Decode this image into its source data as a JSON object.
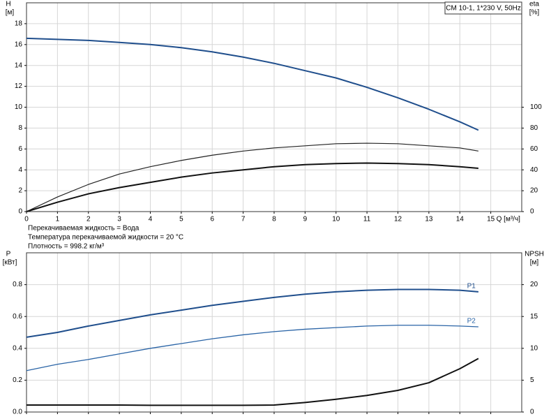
{
  "chart_data": [
    {
      "type": "line",
      "title": "CM 10-1, 1*230 V, 50Hz",
      "ylabel": "H",
      "yunit": "[м]",
      "y2label": "eta",
      "y2unit": "[%]",
      "xlabel": "Q [м³/ч]",
      "notes": [
        "Перекачиваемая жидкость = Вода",
        "Температура перекачиваемой жидкости = 20 °C",
        "Плотность = 998.2 кг/м³"
      ],
      "x": [
        0,
        1,
        2,
        3,
        4,
        5,
        6,
        7,
        8,
        9,
        10,
        11,
        12,
        13,
        14,
        14.6
      ],
      "xlim": [
        0,
        16
      ],
      "xticks": [
        0,
        1,
        2,
        3,
        4,
        5,
        6,
        7,
        8,
        9,
        10,
        11,
        12,
        13,
        14,
        15
      ],
      "xtick_labels": true,
      "ylim": [
        0,
        20
      ],
      "yticks": [
        0,
        2,
        4,
        6,
        8,
        10,
        12,
        14,
        16,
        18
      ],
      "y2lim": [
        0,
        200
      ],
      "y2ticks": [
        0,
        20,
        40,
        60,
        80,
        100
      ],
      "grid": true,
      "series": [
        {
          "color": "#1f4e8c",
          "width": 2,
          "values": [
            16.6,
            16.5,
            16.4,
            16.2,
            16.0,
            15.7,
            15.3,
            14.8,
            14.2,
            13.5,
            12.8,
            11.9,
            10.9,
            9.8,
            8.6,
            7.8
          ]
        },
        {
          "color": "#222222",
          "width": 1.2,
          "axis": "y2",
          "values": [
            0,
            14,
            26,
            36,
            43,
            49,
            54,
            58,
            61,
            63,
            65,
            65.5,
            65,
            63,
            61,
            58
          ]
        },
        {
          "color": "#111111",
          "width": 2,
          "axis": "y2",
          "values": [
            0,
            9,
            17,
            23,
            28,
            33,
            37,
            40,
            43,
            45,
            46,
            46.5,
            46,
            45,
            43,
            41.5
          ]
        }
      ]
    },
    {
      "type": "line",
      "ylabel": "P",
      "yunit": "[кВт]",
      "y2label": "NPSH",
      "y2unit": "[м]",
      "x": [
        0,
        1,
        2,
        3,
        4,
        5,
        6,
        7,
        8,
        9,
        10,
        11,
        12,
        13,
        14,
        14.6
      ],
      "xlim": [
        0,
        16
      ],
      "xticks": [
        0,
        1,
        2,
        3,
        4,
        5,
        6,
        7,
        8,
        9,
        10,
        11,
        12,
        13,
        14,
        15
      ],
      "xtick_labels": false,
      "ylim": [
        0,
        1
      ],
      "yticks": [
        {
          "value": 0,
          "label": "0.0"
        },
        0.2,
        0.4,
        0.6,
        0.8
      ],
      "y2lim": [
        0,
        25
      ],
      "y2ticks": [
        0,
        5,
        10,
        15,
        20
      ],
      "grid": true,
      "series": [
        {
          "name": "P1",
          "color": "#1f4e8c",
          "width": 2,
          "values": [
            0.47,
            0.5,
            0.54,
            0.575,
            0.61,
            0.64,
            0.67,
            0.695,
            0.72,
            0.74,
            0.755,
            0.765,
            0.77,
            0.77,
            0.765,
            0.755
          ]
        },
        {
          "name": "P2",
          "color": "#2a64a6",
          "width": 1.3,
          "values": [
            0.26,
            0.3,
            0.33,
            0.365,
            0.4,
            0.43,
            0.46,
            0.485,
            0.505,
            0.52,
            0.53,
            0.54,
            0.545,
            0.545,
            0.54,
            0.535
          ]
        },
        {
          "color": "#111111",
          "width": 2,
          "axis": "y2",
          "values": [
            1.1,
            1.1,
            1.1,
            1.1,
            1.05,
            1.05,
            1.05,
            1.05,
            1.1,
            1.5,
            2.0,
            2.6,
            3.4,
            4.6,
            6.8,
            8.4
          ]
        }
      ]
    }
  ]
}
